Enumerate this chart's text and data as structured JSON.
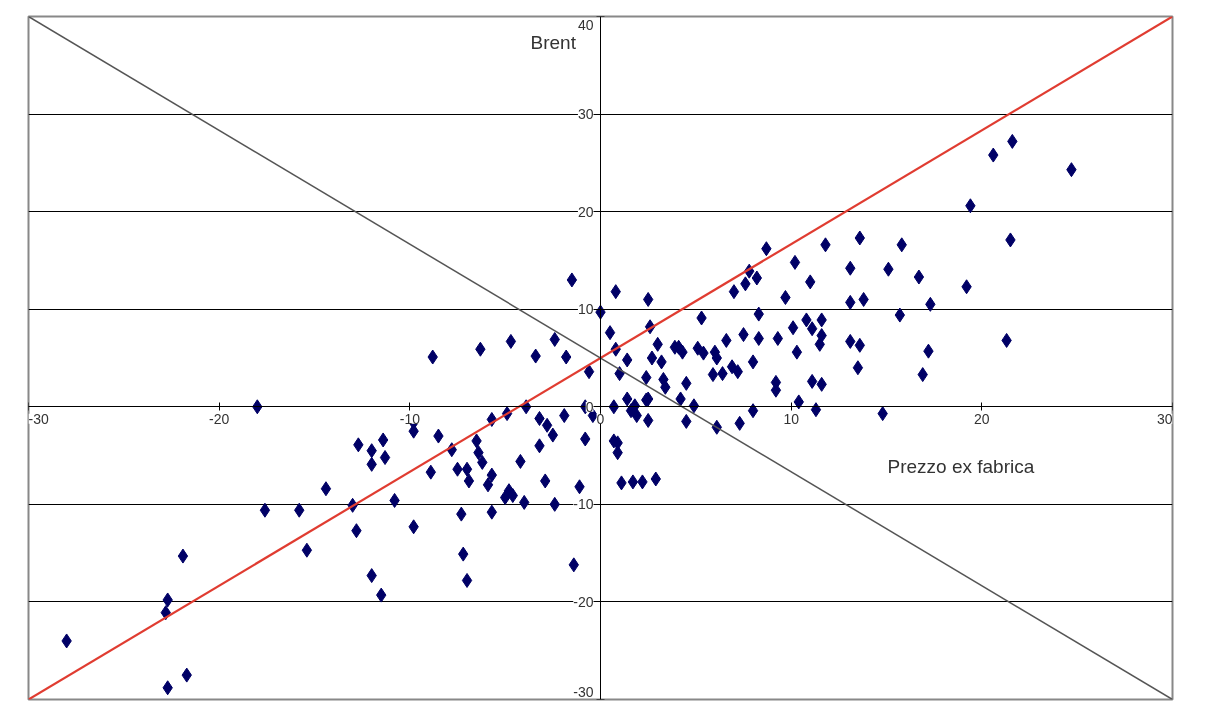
{
  "chart_data": {
    "type": "scatter",
    "xlabel": "Prezzo ex fabrica",
    "ylabel": "Brent",
    "xlim": [
      -30,
      30
    ],
    "ylim": [
      -30,
      40
    ],
    "xticks": [
      -30,
      -20,
      -10,
      0,
      10,
      20,
      30
    ],
    "yticks": [
      -30,
      -20,
      -10,
      0,
      10,
      20,
      30,
      40
    ],
    "grid": "y",
    "series": [
      {
        "color": "#000066",
        "marker": "diamond",
        "x": [
          -28.0,
          -22.7,
          -22.8,
          -21.9,
          -22.7,
          -21.7,
          -18.0,
          -17.6,
          -15.8,
          -15.4,
          -14.4,
          -13.0,
          -12.8,
          -12.0,
          -11.5,
          -12.7,
          -12.0,
          -12.0,
          -11.4,
          -11.3,
          -10.8,
          -9.8,
          -7.0,
          -7.2,
          -1.4,
          -1.5,
          0.8,
          2.5,
          0.0,
          0.5,
          2.6,
          0.8,
          1.4,
          1.0,
          3.0,
          3.9,
          2.7,
          3.2,
          2.4,
          3.3,
          3.4,
          -8.8,
          -6.3,
          -4.7,
          -3.4,
          -2.4,
          -1.8,
          -0.6,
          0.7,
          1.4,
          1.8,
          1.9,
          2.5,
          2.5,
          -0.8,
          -0.4,
          -1.9,
          -3.2,
          -2.8,
          -2.5,
          -3.2,
          -4.2,
          -2.9,
          -1.1,
          -2.4,
          -0.8,
          0.9,
          0.9,
          1.1,
          2.2,
          2.9,
          -5.7,
          -4.9,
          -3.9,
          -9.8,
          -9.8,
          -8.5,
          -7.8,
          -6.5,
          -6.4,
          -6.2,
          -7.5,
          -7.0,
          -8.9,
          -6.9,
          -5.9,
          -5.7,
          -4.8,
          -4.6,
          -5.0,
          -4.0,
          -7.3,
          -5.7,
          21.6,
          20.6,
          24.7,
          19.4,
          21.5,
          19.2,
          21.3,
          8.7,
          11.8,
          13.6,
          15.8,
          10.2,
          13.1,
          15.1,
          16.7,
          11.0,
          7.8,
          8.2,
          7.6,
          7.0,
          9.7,
          13.1,
          13.8,
          17.3,
          15.7,
          8.3,
          5.3,
          10.1,
          10.8,
          11.1,
          11.6,
          11.6,
          11.5,
          13.1,
          13.6,
          13.5,
          17.2,
          16.9,
          10.3,
          9.3,
          8.3,
          7.5,
          6.6,
          8.0,
          9.2,
          9.2,
          11.1,
          11.6,
          10.4,
          11.3,
          14.8,
          4.1,
          4.3,
          5.1,
          5.4,
          6.0,
          6.1,
          6.9,
          7.2,
          5.9,
          6.4,
          4.5,
          1.6,
          2.4,
          4.2,
          4.9,
          4.5,
          6.1,
          7.3,
          8.0,
          0.7,
          1.7
        ],
        "values": [
          -24.0,
          -19.8,
          -21.1,
          -15.3,
          -28.8,
          -27.5,
          0.0,
          -10.6,
          -10.6,
          -14.7,
          -8.4,
          -10.1,
          -12.7,
          -17.3,
          -19.3,
          -3.9,
          -4.5,
          -5.9,
          -3.4,
          -5.2,
          -9.6,
          -12.3,
          -17.8,
          -15.1,
          -16.2,
          13.0,
          11.8,
          11.0,
          9.7,
          7.6,
          8.2,
          5.9,
          4.8,
          3.4,
          6.4,
          6.1,
          5.0,
          4.6,
          3.0,
          2.8,
          2.0,
          5.1,
          5.9,
          6.7,
          5.2,
          6.9,
          5.1,
          3.6,
          0.0,
          0.8,
          0.1,
          -0.9,
          0.8,
          -1.4,
          0.0,
          -0.9,
          -0.9,
          -1.2,
          -1.9,
          -2.9,
          -4.0,
          -5.6,
          -7.6,
          -8.2,
          -10.0,
          -3.3,
          -3.7,
          -4.7,
          -7.8,
          -7.7,
          -7.4,
          -1.3,
          -0.7,
          0.0,
          -1.6,
          -2.5,
          -3.0,
          -4.4,
          -3.5,
          -4.7,
          -5.7,
          -6.4,
          -6.4,
          -6.7,
          -7.6,
          -8.0,
          -7.0,
          -8.6,
          -9.1,
          -9.3,
          -9.8,
          -11.0,
          -10.8,
          27.2,
          25.8,
          24.3,
          20.6,
          17.1,
          12.3,
          6.8,
          16.2,
          16.6,
          17.3,
          16.6,
          14.8,
          14.2,
          14.1,
          13.3,
          12.8,
          13.9,
          13.2,
          12.6,
          11.8,
          11.2,
          10.7,
          11.0,
          10.5,
          9.4,
          9.5,
          9.1,
          8.1,
          8.9,
          8.0,
          8.9,
          7.3,
          6.4,
          6.7,
          6.3,
          4.0,
          5.7,
          3.3,
          5.6,
          7.0,
          7.0,
          7.4,
          6.8,
          4.6,
          2.5,
          1.7,
          2.6,
          2.3,
          0.5,
          -0.3,
          -0.7,
          6.1,
          5.6,
          6.0,
          5.5,
          5.6,
          5.0,
          4.1,
          3.6,
          3.3,
          3.4,
          2.4,
          -0.4,
          0.7,
          0.8,
          0.1,
          -1.5,
          -2.1,
          -1.7,
          -0.4,
          -3.5,
          -7.7
        ]
      },
      {
        "type": "line",
        "color": "#e03c31",
        "x": [
          -30,
          30
        ],
        "values": [
          -30,
          40
        ]
      },
      {
        "type": "line",
        "color": "#555555",
        "x": [
          -30,
          30
        ],
        "values": [
          40,
          -30
        ]
      }
    ]
  }
}
